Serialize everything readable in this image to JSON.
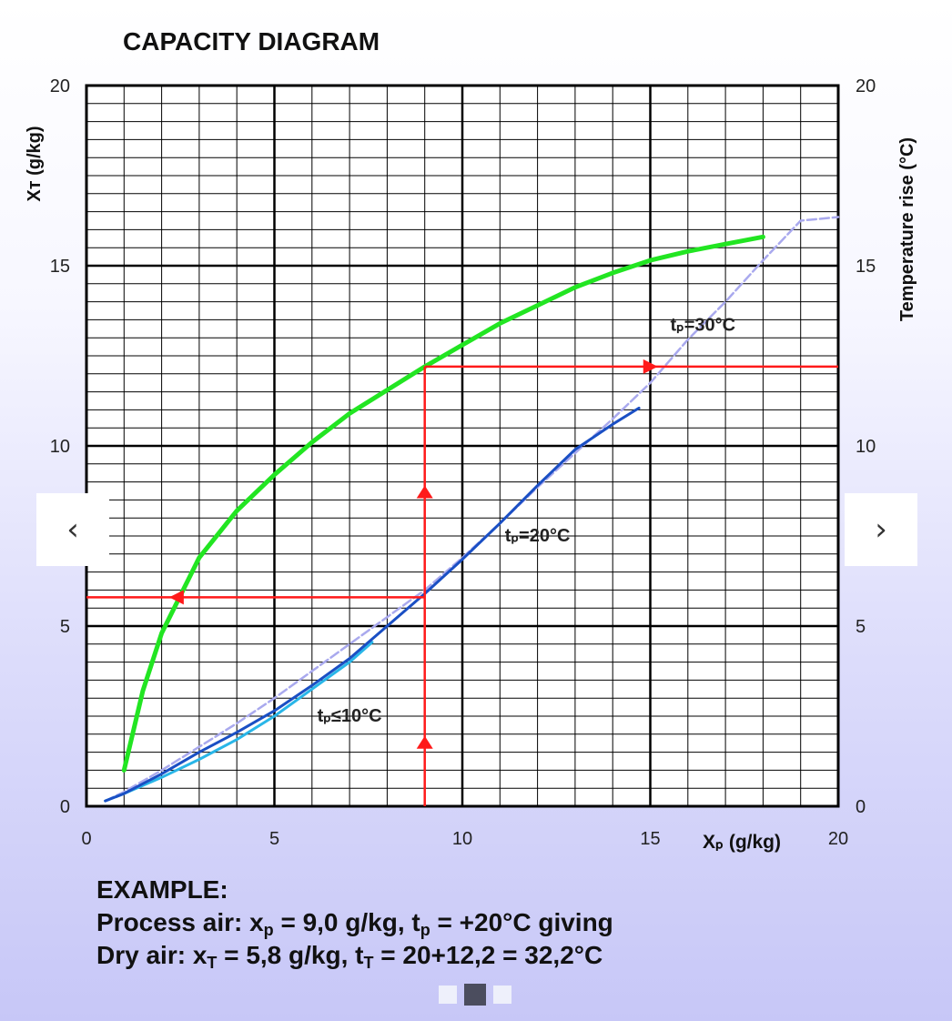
{
  "chart_data": {
    "type": "line",
    "title": "CAPACITY DIAGRAM",
    "xlabel": "Xₚ (g/kg)",
    "ylabel_left": "Xᴛ (g/kg)",
    "ylabel_right": "Temperature rise (°C)",
    "xlim": [
      0,
      20
    ],
    "ylim": [
      0,
      20
    ],
    "x_ticks": [
      "0",
      "5",
      "10",
      "15",
      "20"
    ],
    "y_ticks": [
      "0",
      "5",
      "10",
      "15",
      "20"
    ],
    "grid": true,
    "series": [
      {
        "name": "tₚ≤10°C",
        "color": "#29b6e8",
        "points": [
          [
            0.5,
            0.15
          ],
          [
            1,
            0.35
          ],
          [
            2,
            0.8
          ],
          [
            3,
            1.3
          ],
          [
            4,
            1.85
          ],
          [
            5,
            2.5
          ],
          [
            6,
            3.25
          ],
          [
            7,
            4.0
          ],
          [
            7.6,
            4.55
          ]
        ]
      },
      {
        "name": "tₚ=20°C",
        "color": "#1a4fc4",
        "points": [
          [
            0.5,
            0.15
          ],
          [
            1,
            0.35
          ],
          [
            2,
            0.9
          ],
          [
            3,
            1.5
          ],
          [
            4,
            2.05
          ],
          [
            5,
            2.65
          ],
          [
            6,
            3.35
          ],
          [
            7,
            4.1
          ],
          [
            8,
            5.0
          ],
          [
            9,
            5.9
          ],
          [
            10,
            6.85
          ],
          [
            11,
            7.85
          ],
          [
            12,
            8.9
          ],
          [
            13,
            9.9
          ],
          [
            14,
            10.6
          ],
          [
            14.7,
            11.05
          ]
        ]
      },
      {
        "name": "tₚ=30°C",
        "color": "#a9a9ee",
        "dashed": true,
        "points": [
          [
            0.5,
            0.15
          ],
          [
            1,
            0.4
          ],
          [
            2,
            1.0
          ],
          [
            3,
            1.65
          ],
          [
            4,
            2.3
          ],
          [
            5,
            3.0
          ],
          [
            6,
            3.75
          ],
          [
            7,
            4.5
          ],
          [
            8,
            5.25
          ],
          [
            9,
            6.0
          ],
          [
            10,
            6.9
          ],
          [
            11,
            7.85
          ],
          [
            12,
            8.85
          ],
          [
            13,
            9.8
          ],
          [
            14,
            10.75
          ],
          [
            15,
            11.75
          ],
          [
            16,
            12.95
          ],
          [
            17,
            14.0
          ],
          [
            18,
            15.15
          ],
          [
            19,
            16.25
          ],
          [
            20,
            16.35
          ]
        ]
      },
      {
        "name": "Temperature rise",
        "color": "#22e522",
        "points": [
          [
            1,
            1.0
          ],
          [
            1.5,
            3.2
          ],
          [
            2,
            4.8
          ],
          [
            3,
            6.9
          ],
          [
            4,
            8.2
          ],
          [
            5,
            9.2
          ],
          [
            6,
            10.1
          ],
          [
            7,
            10.9
          ],
          [
            8,
            11.55
          ],
          [
            9,
            12.2
          ],
          [
            10,
            12.8
          ],
          [
            11,
            13.4
          ],
          [
            12,
            13.9
          ],
          [
            13,
            14.4
          ],
          [
            14,
            14.8
          ],
          [
            15,
            15.15
          ],
          [
            16,
            15.4
          ],
          [
            17,
            15.6
          ],
          [
            18,
            15.8
          ]
        ]
      }
    ],
    "example_path": {
      "color": "#ff1a1a",
      "x_p": 9.0,
      "x_t": 5.8,
      "temp_rise": 12.2
    }
  },
  "example": {
    "heading": "EXAMPLE:",
    "line1_a": "Process air: x",
    "line1_sub1": "p",
    "line1_b": " = 9,0 g/kg, t",
    "line1_sub2": "p",
    "line1_c": " = +20°C giving",
    "line2_a": "Dry air: x",
    "line2_sub1": "T",
    "line2_b": " = 5,8 g/kg, t",
    "line2_sub2": "T",
    "line2_c": " = 20+12,2 = 32,2°C"
  },
  "nav": {
    "prev_glyph": "‹",
    "next_glyph": "›"
  }
}
